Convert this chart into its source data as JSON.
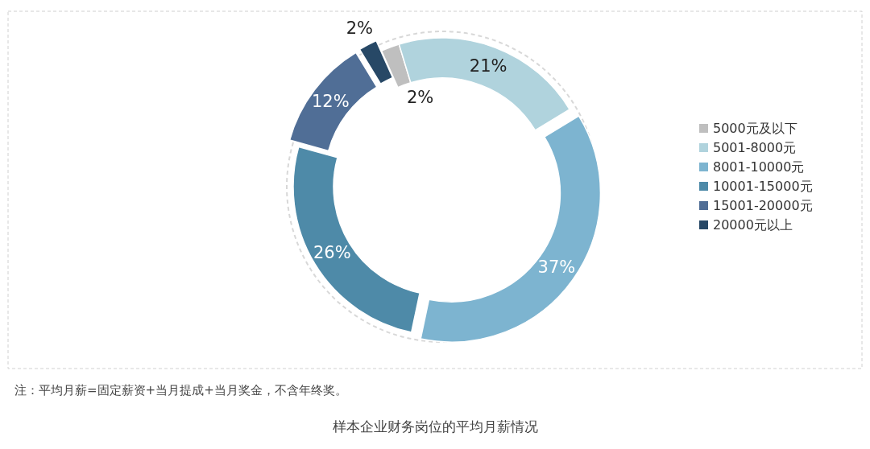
{
  "chart_data": {
    "type": "donut",
    "title": "样本企业财务岗位的平均月薪情况",
    "categories": [
      "5000元及以下",
      "5001-8000元",
      "8001-10000元",
      "10001-15000元",
      "15001-20000元",
      "20000元以上"
    ],
    "values": [
      2,
      21,
      37,
      26,
      12,
      2
    ],
    "colors": [
      "#bfbfbf",
      "#b0d3dd",
      "#7db4d0",
      "#4e8aa8",
      "#506e96",
      "#274866"
    ],
    "value_labels": [
      "2%",
      "21%",
      "37%",
      "26%",
      "12%",
      "2%"
    ],
    "annotations": [
      "注：平均月薪=固定薪资+当月提成+当月奖金，不含年终奖。"
    ],
    "legend": "right"
  }
}
